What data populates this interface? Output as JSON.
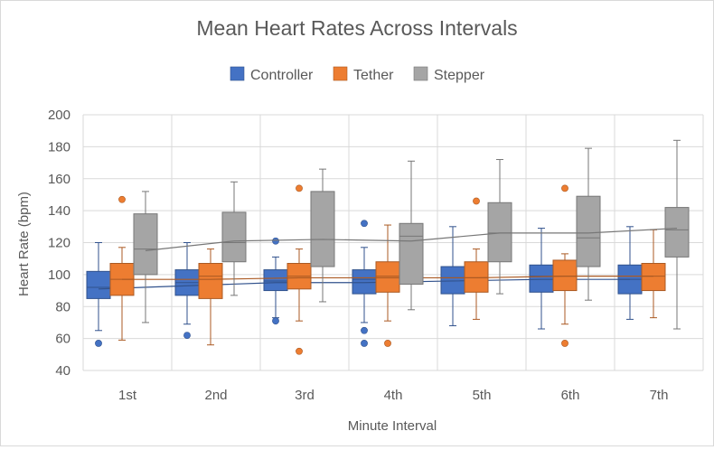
{
  "chart_data": {
    "type": "box",
    "title": "Mean Heart Rates Across Intervals",
    "xlabel": "Minute Interval",
    "ylabel": "Heart Rate (bpm)",
    "ylim": [
      40,
      200
    ],
    "yticks": [
      40,
      60,
      80,
      100,
      120,
      140,
      160,
      180,
      200
    ],
    "grid": true,
    "legend": "top",
    "categories": [
      "1st",
      "2nd",
      "3rd",
      "4th",
      "5th",
      "6th",
      "7th"
    ],
    "series": [
      {
        "name": "Controller",
        "color": "#4472c4",
        "stats": [
          {
            "min": 65,
            "q1": 85,
            "median": 92,
            "q3": 102,
            "max": 120,
            "mean": 91,
            "outliers": [
              57
            ]
          },
          {
            "min": 69,
            "q1": 87,
            "median": 95,
            "q3": 103,
            "max": 120,
            "mean": 93,
            "outliers": [
              62
            ]
          },
          {
            "min": 73,
            "q1": 90,
            "median": 96,
            "q3": 103,
            "max": 111,
            "mean": 95,
            "outliers": [
              121,
              71
            ]
          },
          {
            "min": 70,
            "q1": 88,
            "median": 97,
            "q3": 103,
            "max": 117,
            "mean": 95,
            "outliers": [
              132,
              65,
              57
            ]
          },
          {
            "min": 68,
            "q1": 88,
            "median": 98,
            "q3": 105,
            "max": 130,
            "mean": 96,
            "outliers": []
          },
          {
            "min": 66,
            "q1": 89,
            "median": 99,
            "q3": 106,
            "max": 129,
            "mean": 97,
            "outliers": []
          },
          {
            "min": 72,
            "q1": 88,
            "median": 97,
            "q3": 106,
            "max": 130,
            "mean": 97,
            "outliers": []
          }
        ]
      },
      {
        "name": "Tether",
        "color": "#ed7d31",
        "stats": [
          {
            "min": 59,
            "q1": 87,
            "median": 97,
            "q3": 107,
            "max": 117,
            "mean": 97,
            "outliers": [
              147
            ]
          },
          {
            "min": 56,
            "q1": 85,
            "median": 99,
            "q3": 107,
            "max": 116,
            "mean": 97,
            "outliers": []
          },
          {
            "min": 71,
            "q1": 91,
            "median": 99,
            "q3": 107,
            "max": 116,
            "mean": 98,
            "outliers": [
              154,
              52
            ]
          },
          {
            "min": 71,
            "q1": 89,
            "median": 99,
            "q3": 108,
            "max": 131,
            "mean": 98,
            "outliers": [
              57
            ]
          },
          {
            "min": 72,
            "q1": 89,
            "median": 98,
            "q3": 108,
            "max": 116,
            "mean": 98,
            "outliers": [
              146
            ]
          },
          {
            "min": 69,
            "q1": 90,
            "median": 99,
            "q3": 109,
            "max": 113,
            "mean": 99,
            "outliers": [
              154,
              57
            ]
          },
          {
            "min": 73,
            "q1": 90,
            "median": 99,
            "q3": 107,
            "max": 128,
            "mean": 99,
            "outliers": []
          }
        ]
      },
      {
        "name": "Stepper",
        "color": "#a5a5a5",
        "stats": [
          {
            "min": 70,
            "q1": 100,
            "median": 116,
            "q3": 138,
            "max": 152,
            "mean": 115,
            "outliers": []
          },
          {
            "min": 87,
            "q1": 108,
            "median": 120,
            "q3": 139,
            "max": 158,
            "mean": 121,
            "outliers": []
          },
          {
            "min": 83,
            "q1": 105,
            "median": 122,
            "q3": 152,
            "max": 166,
            "mean": 122,
            "outliers": []
          },
          {
            "min": 78,
            "q1": 94,
            "median": 124,
            "q3": 132,
            "max": 171,
            "mean": 121,
            "outliers": []
          },
          {
            "min": 88,
            "q1": 108,
            "median": 126,
            "q3": 145,
            "max": 172,
            "mean": 126,
            "outliers": []
          },
          {
            "min": 84,
            "q1": 105,
            "median": 123,
            "q3": 149,
            "max": 179,
            "mean": 126,
            "outliers": []
          },
          {
            "min": 66,
            "q1": 111,
            "median": 128,
            "q3": 142,
            "max": 184,
            "mean": 129,
            "outliers": []
          }
        ]
      }
    ]
  }
}
